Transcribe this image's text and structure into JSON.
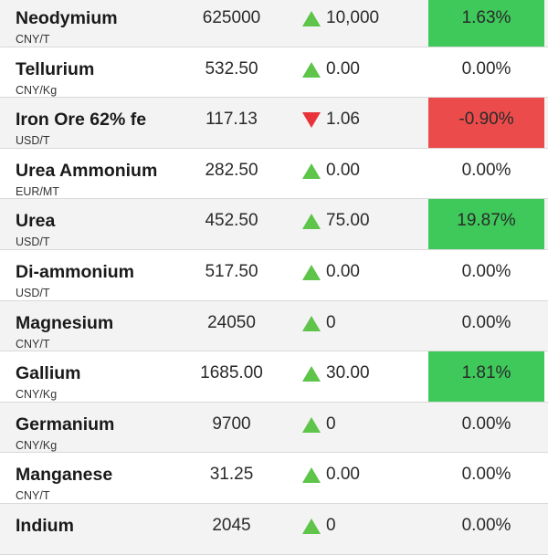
{
  "rows": [
    {
      "name": "Neodymium",
      "unit": "CNY/T",
      "price": "625000",
      "direction": "up",
      "change": "10,000",
      "percent": "1.63%",
      "highlight": "pos"
    },
    {
      "name": "Tellurium",
      "unit": "CNY/Kg",
      "price": "532.50",
      "direction": "up",
      "change": "0.00",
      "percent": "0.00%",
      "highlight": "none"
    },
    {
      "name": "Iron Ore 62% fe",
      "unit": "USD/T",
      "price": "117.13",
      "direction": "down",
      "change": "1.06",
      "percent": "-0.90%",
      "highlight": "neg"
    },
    {
      "name": "Urea Ammonium",
      "unit": "EUR/MT",
      "price": "282.50",
      "direction": "up",
      "change": "0.00",
      "percent": "0.00%",
      "highlight": "none"
    },
    {
      "name": "Urea",
      "unit": "USD/T",
      "price": "452.50",
      "direction": "up",
      "change": "75.00",
      "percent": "19.87%",
      "highlight": "pos"
    },
    {
      "name": "Di-ammonium",
      "unit": "USD/T",
      "price": "517.50",
      "direction": "up",
      "change": "0.00",
      "percent": "0.00%",
      "highlight": "none"
    },
    {
      "name": "Magnesium",
      "unit": "CNY/T",
      "price": "24050",
      "direction": "up",
      "change": "0",
      "percent": "0.00%",
      "highlight": "none"
    },
    {
      "name": "Gallium",
      "unit": "CNY/Kg",
      "price": "1685.00",
      "direction": "up",
      "change": "30.00",
      "percent": "1.81%",
      "highlight": "pos"
    },
    {
      "name": "Germanium",
      "unit": "CNY/Kg",
      "price": "9700",
      "direction": "up",
      "change": "0",
      "percent": "0.00%",
      "highlight": "none"
    },
    {
      "name": "Manganese",
      "unit": "CNY/T",
      "price": "31.25",
      "direction": "up",
      "change": "0.00",
      "percent": "0.00%",
      "highlight": "none"
    },
    {
      "name": "Indium",
      "unit": "",
      "price": "2045",
      "direction": "up",
      "change": "0",
      "percent": "0.00%",
      "highlight": "none"
    }
  ],
  "colors": {
    "up_arrow": "#5ec44a",
    "down_arrow": "#e8333a",
    "positive_bg": "#3ec95a",
    "negative_bg": "#ec4b4b",
    "row_shade": "#f3f3f3"
  }
}
